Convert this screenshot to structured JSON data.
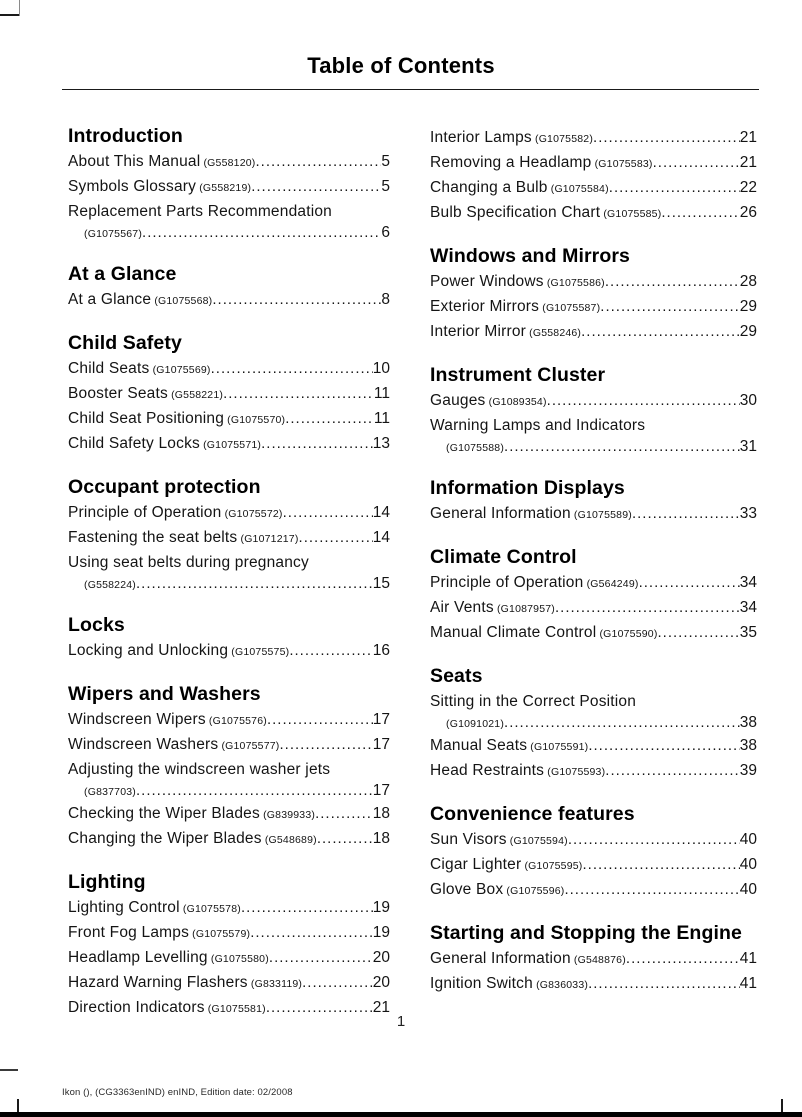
{
  "page": {
    "title": "Table of Contents",
    "page_number": "1",
    "footer": "Ikon (), (CG3363enIND) enIND, Edition date: 02/2008"
  },
  "toc": {
    "columns": [
      {
        "sections": [
          {
            "heading": "Introduction",
            "entries": [
              {
                "title": "About This Manual",
                "code": "(G558120)",
                "page": "5"
              },
              {
                "title": "Symbols Glossary",
                "code": "(G558219)",
                "page": "5"
              },
              {
                "title": "Replacement Parts Recommendation",
                "code": "(G1075567)",
                "page": "6",
                "wrap": true
              }
            ]
          },
          {
            "heading": "At a Glance",
            "entries": [
              {
                "title": "At a Glance",
                "code": "(G1075568)",
                "page": "8"
              }
            ]
          },
          {
            "heading": "Child Safety",
            "entries": [
              {
                "title": "Child Seats",
                "code": "(G1075569)",
                "page": "10"
              },
              {
                "title": "Booster Seats",
                "code": "(G558221)",
                "page": "11"
              },
              {
                "title": "Child Seat Positioning",
                "code": "(G1075570)",
                "page": "11"
              },
              {
                "title": "Child Safety Locks",
                "code": "(G1075571)",
                "page": "13"
              }
            ]
          },
          {
            "heading": "Occupant protection",
            "entries": [
              {
                "title": "Principle of Operation",
                "code": "(G1075572)",
                "page": "14"
              },
              {
                "title": "Fastening the seat belts",
                "code": "(G1071217)",
                "page": "14"
              },
              {
                "title": "Using seat belts during pregnancy",
                "code": "(G558224)",
                "page": "15",
                "wrap": true
              }
            ]
          },
          {
            "heading": "Locks",
            "entries": [
              {
                "title": "Locking and Unlocking",
                "code": "(G1075575)",
                "page": "16"
              }
            ]
          },
          {
            "heading": "Wipers and Washers",
            "entries": [
              {
                "title": "Windscreen Wipers",
                "code": "(G1075576)",
                "page": "17"
              },
              {
                "title": "Windscreen Washers",
                "code": "(G1075577)",
                "page": "17"
              },
              {
                "title": "Adjusting the windscreen washer jets",
                "code": "(G837703)",
                "page": "17",
                "wrap": true
              },
              {
                "title": "Checking the Wiper Blades",
                "code": "(G839933)",
                "page": "18"
              },
              {
                "title": "Changing the Wiper Blades",
                "code": "(G548689)",
                "page": "18"
              }
            ]
          },
          {
            "heading": "Lighting",
            "entries": [
              {
                "title": "Lighting Control",
                "code": "(G1075578)",
                "page": "19"
              },
              {
                "title": "Front Fog Lamps",
                "code": "(G1075579)",
                "page": "19"
              },
              {
                "title": "Headlamp Levelling",
                "code": "(G1075580)",
                "page": "20"
              },
              {
                "title": "Hazard Warning Flashers",
                "code": "(G833119)",
                "page": "20"
              },
              {
                "title": "Direction Indicators",
                "code": "(G1075581)",
                "page": "21"
              }
            ]
          }
        ]
      },
      {
        "sections": [
          {
            "heading": "",
            "entries": [
              {
                "title": "Interior Lamps",
                "code": "(G1075582)",
                "page": "21"
              },
              {
                "title": "Removing a Headlamp",
                "code": "(G1075583)",
                "page": "21"
              },
              {
                "title": "Changing a Bulb",
                "code": "(G1075584)",
                "page": "22"
              },
              {
                "title": "Bulb Specification Chart",
                "code": "(G1075585)",
                "page": "26"
              }
            ]
          },
          {
            "heading": "Windows and Mirrors",
            "entries": [
              {
                "title": "Power Windows",
                "code": "(G1075586)",
                "page": "28"
              },
              {
                "title": "Exterior Mirrors",
                "code": "(G1075587)",
                "page": "29"
              },
              {
                "title": "Interior Mirror",
                "code": "(G558246)",
                "page": "29"
              }
            ]
          },
          {
            "heading": "Instrument Cluster",
            "entries": [
              {
                "title": "Gauges",
                "code": "(G1089354)",
                "page": "30"
              },
              {
                "title": "Warning Lamps and Indicators",
                "code": "(G1075588)",
                "page": "31",
                "wrap": true
              }
            ]
          },
          {
            "heading": "Information Displays",
            "entries": [
              {
                "title": "General Information",
                "code": "(G1075589)",
                "page": "33"
              }
            ]
          },
          {
            "heading": "Climate Control",
            "entries": [
              {
                "title": "Principle of Operation",
                "code": "(G564249)",
                "page": "34"
              },
              {
                "title": "Air Vents",
                "code": "(G1087957)",
                "page": "34"
              },
              {
                "title": "Manual Climate Control",
                "code": "(G1075590)",
                "page": "35"
              }
            ]
          },
          {
            "heading": "Seats",
            "entries": [
              {
                "title": "Sitting in the Correct Position",
                "code": "(G1091021)",
                "page": "38",
                "wrap": true
              },
              {
                "title": "Manual Seats",
                "code": "(G1075591)",
                "page": "38"
              },
              {
                "title": "Head Restraints",
                "code": "(G1075593)",
                "page": "39"
              }
            ]
          },
          {
            "heading": "Convenience features",
            "entries": [
              {
                "title": "Sun Visors",
                "code": "(G1075594)",
                "page": "40"
              },
              {
                "title": "Cigar Lighter",
                "code": "(G1075595)",
                "page": "40"
              },
              {
                "title": "Glove Box",
                "code": "(G1075596)",
                "page": "40"
              }
            ]
          },
          {
            "heading": "Starting and Stopping the Engine",
            "entries": [
              {
                "title": "General Information",
                "code": "(G548876)",
                "page": "41"
              },
              {
                "title": "Ignition Switch",
                "code": "(G836033)",
                "page": "41"
              }
            ]
          }
        ]
      }
    ]
  }
}
